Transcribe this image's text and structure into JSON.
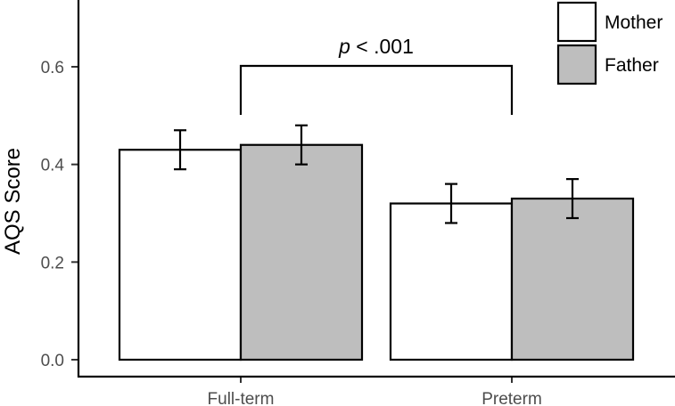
{
  "chart_data": {
    "type": "bar",
    "categories": [
      "Full-term",
      "Preterm"
    ],
    "series": [
      {
        "name": "Mother",
        "color": "#ffffff",
        "values": [
          0.43,
          0.32
        ],
        "error_low": [
          0.39,
          0.28
        ],
        "error_high": [
          0.47,
          0.36
        ]
      },
      {
        "name": "Father",
        "color": "#bebebe",
        "values": [
          0.44,
          0.33
        ],
        "error_low": [
          0.4,
          0.29
        ],
        "error_high": [
          0.48,
          0.37
        ]
      }
    ],
    "title": "",
    "xlabel": "",
    "ylabel": "AQS Score",
    "ylim": [
      0.0,
      0.75
    ],
    "yticks": [
      "0.0",
      "0.2",
      "0.4",
      "0.6"
    ],
    "annotation": {
      "italic": "p",
      "text": " < .001"
    },
    "legend_position": "top-right",
    "grid": false
  }
}
